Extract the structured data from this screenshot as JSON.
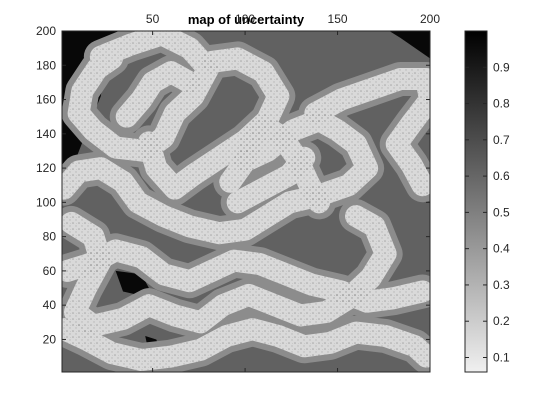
{
  "chart_data": {
    "type": "heatmap",
    "title": "map of uncertainty",
    "x_axis": {
      "range": [
        1,
        200
      ],
      "ticks": [
        50,
        100,
        150,
        200
      ],
      "labels": [
        "50",
        "100",
        "150",
        "200"
      ],
      "location": "top"
    },
    "y_axis": {
      "range": [
        1,
        200
      ],
      "ticks": [
        20,
        40,
        60,
        80,
        100,
        120,
        140,
        160,
        180,
        200
      ],
      "labels": [
        "20",
        "40",
        "60",
        "80",
        "100",
        "120",
        "140",
        "160",
        "180",
        "200"
      ],
      "direction": "normal"
    },
    "colorbar": {
      "range": [
        0.06,
        1.0
      ],
      "ticks": [
        0.1,
        0.2,
        0.3,
        0.4,
        0.5,
        0.6,
        0.7,
        0.8,
        0.9
      ],
      "labels": [
        "0.1",
        "0.2",
        "0.3",
        "0.4",
        "0.5",
        "0.6",
        "0.7",
        "0.8",
        "0.9"
      ],
      "colormap": "gray-reversed",
      "location": "right"
    },
    "value_levels": {
      "band_bright": 0.15,
      "band_halo": 0.45,
      "background": 0.62,
      "corner_dark": 0.97
    },
    "bands": [
      [
        [
          22,
          185
        ],
        [
          38,
          192
        ],
        [
          55,
          198
        ],
        [
          70,
          190
        ],
        [
          80,
          178
        ],
        [
          72,
          162
        ],
        [
          62,
          152
        ],
        [
          56,
          138
        ],
        [
          46,
          130
        ],
        [
          30,
          132
        ],
        [
          18,
          142
        ],
        [
          10,
          152
        ],
        [
          12,
          165
        ],
        [
          20,
          178
        ],
        [
          28,
          184
        ]
      ],
      [
        [
          82,
          182
        ],
        [
          96,
          184
        ],
        [
          110,
          176
        ],
        [
          118,
          162
        ],
        [
          112,
          148
        ],
        [
          100,
          136
        ],
        [
          86,
          126
        ],
        [
          72,
          116
        ],
        [
          62,
          108
        ],
        [
          52,
          120
        ],
        [
          48,
          135
        ]
      ],
      [
        [
          2,
          108
        ],
        [
          10,
          118
        ],
        [
          22,
          120
        ],
        [
          34,
          112
        ],
        [
          42,
          100
        ],
        [
          56,
          92
        ],
        [
          70,
          86
        ],
        [
          86,
          82
        ],
        [
          100,
          84
        ],
        [
          112,
          92
        ],
        [
          124,
          100
        ],
        [
          140,
          104
        ],
        [
          156,
          110
        ],
        [
          166,
          120
        ],
        [
          160,
          134
        ],
        [
          150,
          142
        ],
        [
          140,
          148
        ],
        [
          126,
          142
        ],
        [
          112,
          130
        ],
        [
          100,
          124
        ],
        [
          92,
          112
        ]
      ],
      [
        [
          100,
          124
        ],
        [
          104,
          138
        ],
        [
          110,
          145
        ],
        [
          120,
          138
        ],
        [
          128,
          126
        ],
        [
          134,
          112
        ],
        [
          140,
          100
        ]
      ],
      [
        [
          138,
          152
        ],
        [
          152,
          160
        ],
        [
          168,
          166
        ],
        [
          184,
          172
        ],
        [
          198,
          172
        ],
        [
          200,
          160
        ],
        [
          190,
          146
        ],
        [
          182,
          134
        ],
        [
          190,
          122
        ],
        [
          196,
          110
        ]
      ],
      [
        [
          4,
          60
        ],
        [
          16,
          64
        ],
        [
          30,
          72
        ],
        [
          44,
          68
        ],
        [
          56,
          58
        ],
        [
          70,
          54
        ],
        [
          82,
          60
        ],
        [
          94,
          66
        ],
        [
          108,
          64
        ],
        [
          122,
          58
        ],
        [
          136,
          52
        ],
        [
          152,
          48
        ],
        [
          166,
          42
        ],
        [
          180,
          44
        ],
        [
          196,
          48
        ]
      ],
      [
        [
          2,
          26
        ],
        [
          14,
          20
        ],
        [
          28,
          12
        ],
        [
          44,
          8
        ],
        [
          60,
          10
        ],
        [
          76,
          14
        ],
        [
          90,
          22
        ],
        [
          104,
          26
        ],
        [
          118,
          22
        ],
        [
          132,
          16
        ],
        [
          146,
          18
        ],
        [
          160,
          24
        ],
        [
          176,
          22
        ],
        [
          192,
          16
        ],
        [
          198,
          10
        ]
      ],
      [
        [
          6,
          88
        ],
        [
          18,
          80
        ],
        [
          22,
          66
        ],
        [
          14,
          50
        ],
        [
          8,
          36
        ],
        [
          18,
          28
        ],
        [
          34,
          32
        ],
        [
          48,
          40
        ],
        [
          62,
          34
        ],
        [
          76,
          30
        ],
        [
          88,
          40
        ],
        [
          102,
          46
        ],
        [
          116,
          40
        ],
        [
          130,
          34
        ],
        [
          144,
          36
        ],
        [
          156,
          44
        ],
        [
          168,
          56
        ],
        [
          176,
          70
        ],
        [
          170,
          86
        ],
        [
          160,
          92
        ]
      ],
      [
        [
          36,
          150
        ],
        [
          44,
          160
        ],
        [
          50,
          170
        ],
        [
          60,
          176
        ],
        [
          70,
          170
        ]
      ],
      [
        [
          96,
          100
        ],
        [
          110,
          108
        ],
        [
          124,
          116
        ],
        [
          132,
          126
        ]
      ]
    ],
    "dark_regions": [
      [
        [
          1,
          200
        ],
        [
          1,
          120
        ],
        [
          8,
          124
        ],
        [
          16,
          146
        ],
        [
          22,
          162
        ],
        [
          24,
          178
        ],
        [
          30,
          190
        ],
        [
          36,
          200
        ]
      ],
      [
        [
          178,
          200
        ],
        [
          200,
          200
        ],
        [
          200,
          184
        ],
        [
          192,
          190
        ],
        [
          184,
          196
        ]
      ],
      [
        [
          30,
          60
        ],
        [
          44,
          58
        ],
        [
          48,
          50
        ],
        [
          42,
          46
        ],
        [
          34,
          48
        ]
      ],
      [
        [
          118,
          138
        ],
        [
          126,
          148
        ],
        [
          132,
          140
        ],
        [
          124,
          132
        ]
      ],
      [
        [
          46,
          22
        ],
        [
          52,
          20
        ],
        [
          54,
          14
        ],
        [
          48,
          12
        ]
      ],
      [
        [
          172,
          84
        ],
        [
          176,
          84
        ],
        [
          176,
          78
        ],
        [
          172,
          78
        ]
      ]
    ]
  }
}
